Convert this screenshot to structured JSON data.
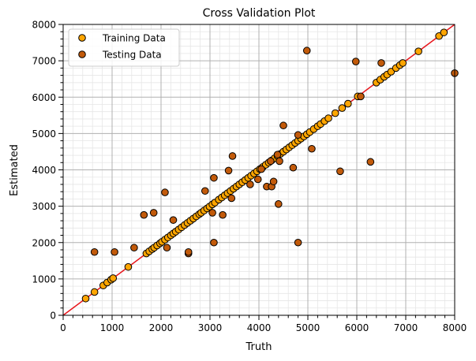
{
  "chart_data": {
    "type": "scatter",
    "title": "Cross Validation Plot",
    "xlabel": "Truth",
    "ylabel": "Estimated",
    "xlim": [
      0,
      8000
    ],
    "ylim": [
      0,
      8000
    ],
    "xticks": [
      "0",
      "1000",
      "2000",
      "3000",
      "4000",
      "5000",
      "6000",
      "7000",
      "8000"
    ],
    "yticks": [
      "0",
      "1000",
      "2000",
      "3000",
      "4000",
      "5000",
      "6000",
      "7000",
      "8000"
    ],
    "grid": "major and minor",
    "legend_position": "top-left",
    "identity_line_color": "#e8151b",
    "series": [
      {
        "name": "Training Data",
        "color": "#ffa500",
        "points": [
          [
            460,
            460
          ],
          [
            640,
            640
          ],
          [
            820,
            820
          ],
          [
            900,
            900
          ],
          [
            980,
            980
          ],
          [
            1020,
            1020
          ],
          [
            1330,
            1330
          ],
          [
            1700,
            1700
          ],
          [
            1760,
            1760
          ],
          [
            1820,
            1820
          ],
          [
            1860,
            1860
          ],
          [
            1920,
            1920
          ],
          [
            1980,
            1980
          ],
          [
            2020,
            2020
          ],
          [
            2080,
            2080
          ],
          [
            2140,
            2140
          ],
          [
            2200,
            2200
          ],
          [
            2250,
            2250
          ],
          [
            2300,
            2300
          ],
          [
            2360,
            2360
          ],
          [
            2420,
            2420
          ],
          [
            2480,
            2480
          ],
          [
            2540,
            2540
          ],
          [
            2600,
            2600
          ],
          [
            2660,
            2660
          ],
          [
            2720,
            2720
          ],
          [
            2780,
            2780
          ],
          [
            2820,
            2820
          ],
          [
            2880,
            2880
          ],
          [
            2940,
            2940
          ],
          [
            2990,
            2990
          ],
          [
            3050,
            3050
          ],
          [
            3100,
            3100
          ],
          [
            3180,
            3180
          ],
          [
            3240,
            3240
          ],
          [
            3300,
            3300
          ],
          [
            3360,
            3360
          ],
          [
            3420,
            3420
          ],
          [
            3480,
            3480
          ],
          [
            3540,
            3540
          ],
          [
            3600,
            3600
          ],
          [
            3660,
            3660
          ],
          [
            3720,
            3720
          ],
          [
            3780,
            3780
          ],
          [
            3840,
            3840
          ],
          [
            3900,
            3900
          ],
          [
            3960,
            3960
          ],
          [
            4020,
            4020
          ],
          [
            4080,
            4080
          ],
          [
            4140,
            4140
          ],
          [
            4200,
            4200
          ],
          [
            4260,
            4260
          ],
          [
            4320,
            4320
          ],
          [
            4380,
            4380
          ],
          [
            4440,
            4440
          ],
          [
            4500,
            4500
          ],
          [
            4560,
            4560
          ],
          [
            4620,
            4620
          ],
          [
            4680,
            4680
          ],
          [
            4740,
            4740
          ],
          [
            4800,
            4800
          ],
          [
            4860,
            4860
          ],
          [
            4920,
            4920
          ],
          [
            4980,
            4980
          ],
          [
            5040,
            5040
          ],
          [
            5120,
            5120
          ],
          [
            5200,
            5200
          ],
          [
            5260,
            5260
          ],
          [
            5340,
            5340
          ],
          [
            5420,
            5420
          ],
          [
            5560,
            5560
          ],
          [
            5700,
            5700
          ],
          [
            5820,
            5820
          ],
          [
            6020,
            6020
          ],
          [
            6400,
            6400
          ],
          [
            6480,
            6480
          ],
          [
            6560,
            6560
          ],
          [
            6620,
            6620
          ],
          [
            6700,
            6700
          ],
          [
            6800,
            6800
          ],
          [
            6880,
            6880
          ],
          [
            6940,
            6940
          ],
          [
            7260,
            7260
          ],
          [
            7680,
            7680
          ],
          [
            7780,
            7780
          ]
        ]
      },
      {
        "name": "Testing Data",
        "color": "#c25a0a",
        "points": [
          [
            640,
            1740
          ],
          [
            1050,
            1740
          ],
          [
            1450,
            1860
          ],
          [
            1650,
            2760
          ],
          [
            1850,
            2820
          ],
          [
            2080,
            3380
          ],
          [
            2120,
            1860
          ],
          [
            2250,
            2620
          ],
          [
            2560,
            1700
          ],
          [
            2560,
            1740
          ],
          [
            2900,
            3420
          ],
          [
            3050,
            2820
          ],
          [
            3080,
            2000
          ],
          [
            3080,
            3780
          ],
          [
            3260,
            2760
          ],
          [
            3380,
            3980
          ],
          [
            3440,
            3220
          ],
          [
            3460,
            4380
          ],
          [
            3820,
            3600
          ],
          [
            3980,
            3740
          ],
          [
            4050,
            4020
          ],
          [
            4160,
            3540
          ],
          [
            4240,
            4240
          ],
          [
            4260,
            3540
          ],
          [
            4300,
            3680
          ],
          [
            4380,
            4420
          ],
          [
            4420,
            4240
          ],
          [
            4400,
            3060
          ],
          [
            4500,
            5220
          ],
          [
            4700,
            4060
          ],
          [
            4800,
            4960
          ],
          [
            4800,
            2000
          ],
          [
            4980,
            7280
          ],
          [
            5080,
            4580
          ],
          [
            5660,
            3960
          ],
          [
            5980,
            6980
          ],
          [
            6080,
            6020
          ],
          [
            6280,
            4220
          ],
          [
            6500,
            6940
          ],
          [
            8000,
            6660
          ]
        ]
      }
    ]
  }
}
